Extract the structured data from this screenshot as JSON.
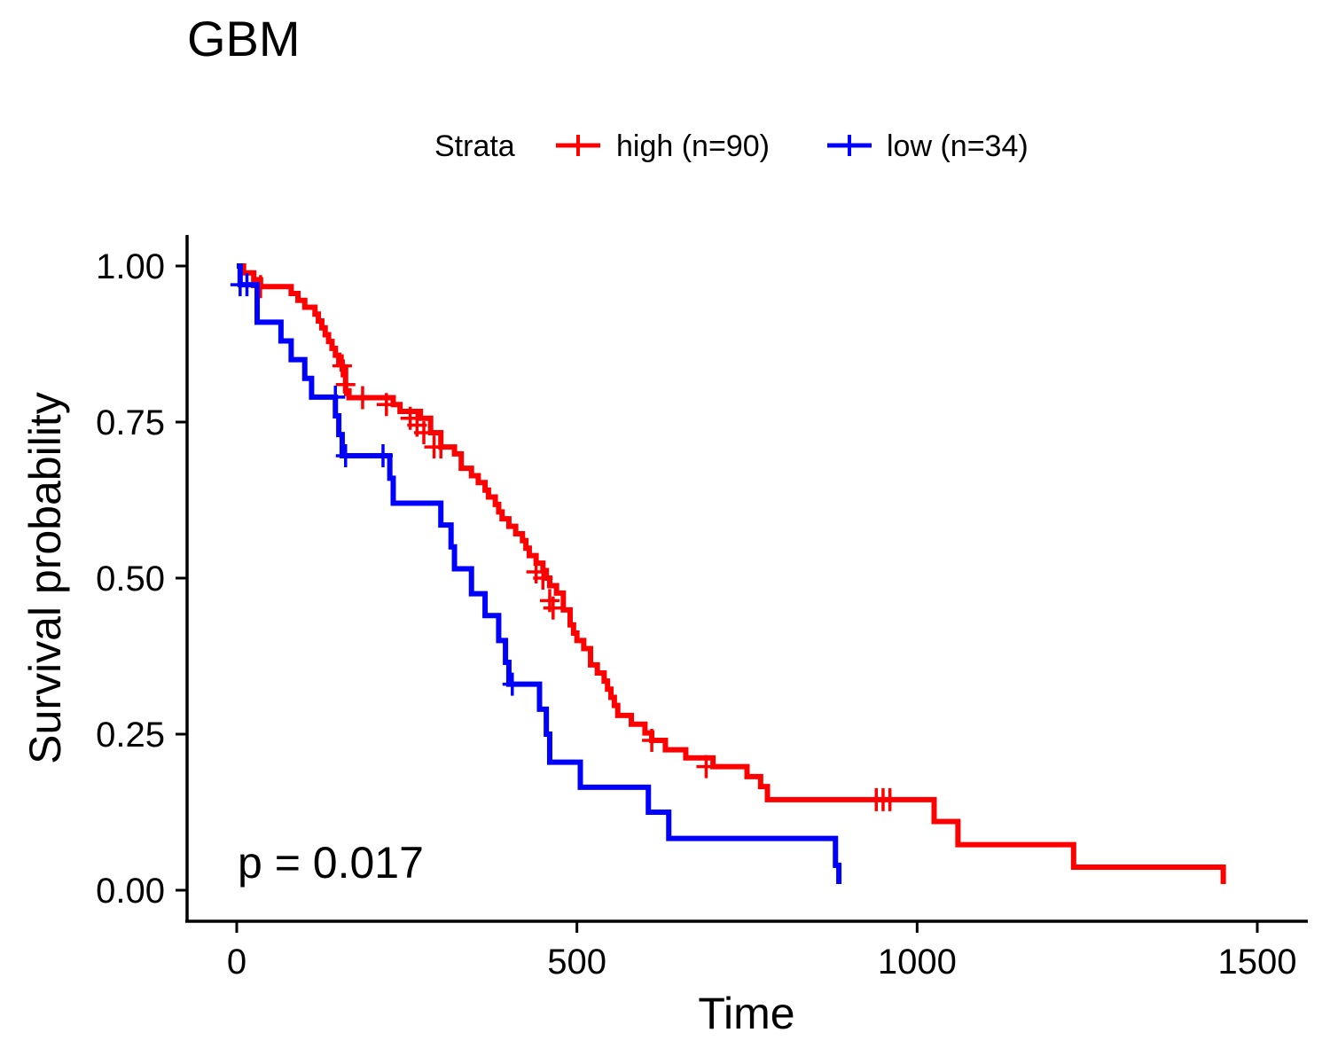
{
  "chart_data": {
    "type": "line",
    "subtype": "kaplan-meier",
    "title": "GBM",
    "xlabel": "Time",
    "ylabel": "Survival probability",
    "xlim": [
      0,
      1500
    ],
    "ylim": [
      0,
      1
    ],
    "xticks": [
      "0",
      "500",
      "1000",
      "1500"
    ],
    "yticks": [
      "0.00",
      "0.25",
      "0.50",
      "0.75",
      "1.00"
    ],
    "grid": false,
    "legend_position": "top",
    "legend_title": "Strata",
    "annotation": "p = 0.017",
    "series": [
      {
        "name": "high (n=90)",
        "color": "#ff0000",
        "steps": [
          [
            0,
            1.0
          ],
          [
            10,
            0.989
          ],
          [
            25,
            0.978
          ],
          [
            35,
            0.967
          ],
          [
            80,
            0.956
          ],
          [
            90,
            0.945
          ],
          [
            100,
            0.934
          ],
          [
            115,
            0.923
          ],
          [
            120,
            0.912
          ],
          [
            125,
            0.901
          ],
          [
            130,
            0.89
          ],
          [
            135,
            0.879
          ],
          [
            140,
            0.868
          ],
          [
            145,
            0.857
          ],
          [
            150,
            0.846
          ],
          [
            155,
            0.835
          ],
          [
            160,
            0.8
          ],
          [
            165,
            0.789
          ],
          [
            230,
            0.778
          ],
          [
            240,
            0.767
          ],
          [
            270,
            0.756
          ],
          [
            285,
            0.733
          ],
          [
            300,
            0.71
          ],
          [
            320,
            0.699
          ],
          [
            330,
            0.676
          ],
          [
            345,
            0.664
          ],
          [
            355,
            0.653
          ],
          [
            365,
            0.641
          ],
          [
            370,
            0.63
          ],
          [
            380,
            0.618
          ],
          [
            385,
            0.606
          ],
          [
            390,
            0.595
          ],
          [
            400,
            0.583
          ],
          [
            410,
            0.571
          ],
          [
            420,
            0.56
          ],
          [
            425,
            0.548
          ],
          [
            430,
            0.536
          ],
          [
            440,
            0.524
          ],
          [
            450,
            0.512
          ],
          [
            455,
            0.5
          ],
          [
            460,
            0.488
          ],
          [
            470,
            0.476
          ],
          [
            480,
            0.449
          ],
          [
            490,
            0.425
          ],
          [
            495,
            0.412
          ],
          [
            500,
            0.4
          ],
          [
            510,
            0.387
          ],
          [
            520,
            0.361
          ],
          [
            530,
            0.348
          ],
          [
            540,
            0.335
          ],
          [
            545,
            0.322
          ],
          [
            550,
            0.309
          ],
          [
            555,
            0.296
          ],
          [
            560,
            0.28
          ],
          [
            580,
            0.266
          ],
          [
            600,
            0.252
          ],
          [
            610,
            0.24
          ],
          [
            630,
            0.225
          ],
          [
            660,
            0.212
          ],
          [
            700,
            0.198
          ],
          [
            750,
            0.182
          ],
          [
            770,
            0.166
          ],
          [
            780,
            0.145
          ],
          [
            1025,
            0.11
          ],
          [
            1060,
            0.073
          ],
          [
            1230,
            0.037
          ],
          [
            1450,
            0.01
          ]
        ],
        "censored": [
          [
            35,
            0.967
          ],
          [
            155,
            0.84
          ],
          [
            160,
            0.81
          ],
          [
            185,
            0.789
          ],
          [
            220,
            0.778
          ],
          [
            255,
            0.756
          ],
          [
            265,
            0.745
          ],
          [
            275,
            0.733
          ],
          [
            290,
            0.71
          ],
          [
            300,
            0.71
          ],
          [
            440,
            0.51
          ],
          [
            450,
            0.5
          ],
          [
            460,
            0.464
          ],
          [
            465,
            0.452
          ],
          [
            610,
            0.24
          ],
          [
            690,
            0.198
          ],
          [
            940,
            0.145
          ],
          [
            950,
            0.145
          ],
          [
            960,
            0.145
          ]
        ]
      },
      {
        "name": "low (n=34)",
        "color": "#0000ff",
        "steps": [
          [
            0,
            1.0
          ],
          [
            5,
            0.97
          ],
          [
            30,
            0.91
          ],
          [
            65,
            0.88
          ],
          [
            80,
            0.85
          ],
          [
            100,
            0.82
          ],
          [
            110,
            0.79
          ],
          [
            145,
            0.76
          ],
          [
            150,
            0.73
          ],
          [
            155,
            0.696
          ],
          [
            225,
            0.66
          ],
          [
            230,
            0.62
          ],
          [
            300,
            0.585
          ],
          [
            315,
            0.55
          ],
          [
            320,
            0.515
          ],
          [
            345,
            0.475
          ],
          [
            365,
            0.44
          ],
          [
            385,
            0.4
          ],
          [
            395,
            0.365
          ],
          [
            400,
            0.33
          ],
          [
            445,
            0.29
          ],
          [
            455,
            0.25
          ],
          [
            460,
            0.205
          ],
          [
            505,
            0.165
          ],
          [
            605,
            0.125
          ],
          [
            635,
            0.083
          ],
          [
            880,
            0.04
          ],
          [
            885,
            0.01
          ]
        ],
        "censored": [
          [
            5,
            0.97
          ],
          [
            15,
            0.97
          ],
          [
            145,
            0.79
          ],
          [
            160,
            0.696
          ],
          [
            215,
            0.696
          ],
          [
            405,
            0.33
          ]
        ]
      }
    ]
  }
}
